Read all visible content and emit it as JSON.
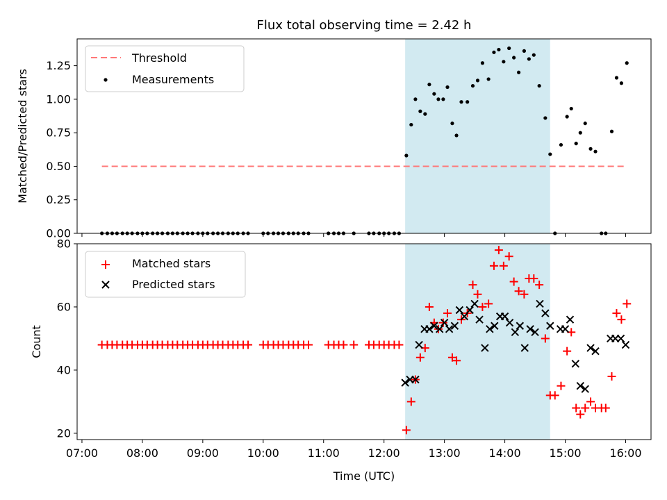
{
  "title": "Flux total observing time = 2.42 h",
  "colors": {
    "threshold": "#ff7777",
    "measurement": "#000000",
    "matched": "#ff0000",
    "predicted": "#000000",
    "window": "#add8e6"
  },
  "chart_data": [
    {
      "type": "scatter",
      "panel": "top",
      "title": "Flux total observing time = 2.42 h",
      "xlabel": "",
      "ylabel": "Matched/Predicted stars",
      "xlim": [
        6.92,
        16.42
      ],
      "ylim": [
        0,
        1.45
      ],
      "y_ticks": [
        0.0,
        0.25,
        0.5,
        0.75,
        1.0,
        1.25
      ],
      "y_tick_labels": [
        "0.00",
        "0.25",
        "0.50",
        "0.75",
        "1.00",
        "1.25"
      ],
      "grid": false,
      "legend_position": "top-left",
      "observing_window": [
        12.35,
        14.75
      ],
      "threshold": {
        "name": "Threshold",
        "value": 0.5,
        "x_range": [
          7.33,
          16.0
        ]
      },
      "measurements": {
        "name": "Measurements",
        "points": [
          [
            7.33,
            0
          ],
          [
            7.42,
            0
          ],
          [
            7.5,
            0
          ],
          [
            7.58,
            0
          ],
          [
            7.67,
            0
          ],
          [
            7.75,
            0
          ],
          [
            7.83,
            0
          ],
          [
            7.92,
            0
          ],
          [
            8.0,
            0
          ],
          [
            8.08,
            0
          ],
          [
            8.17,
            0
          ],
          [
            8.25,
            0
          ],
          [
            8.33,
            0
          ],
          [
            8.42,
            0
          ],
          [
            8.5,
            0
          ],
          [
            8.58,
            0
          ],
          [
            8.67,
            0
          ],
          [
            8.75,
            0
          ],
          [
            8.83,
            0
          ],
          [
            8.92,
            0
          ],
          [
            9.0,
            0
          ],
          [
            9.08,
            0
          ],
          [
            9.17,
            0
          ],
          [
            9.25,
            0
          ],
          [
            9.33,
            0
          ],
          [
            9.42,
            0
          ],
          [
            9.5,
            0
          ],
          [
            9.58,
            0
          ],
          [
            9.67,
            0
          ],
          [
            9.75,
            0
          ],
          [
            10.0,
            0
          ],
          [
            10.08,
            0
          ],
          [
            10.17,
            0
          ],
          [
            10.25,
            0
          ],
          [
            10.33,
            0
          ],
          [
            10.42,
            0
          ],
          [
            10.5,
            0
          ],
          [
            10.58,
            0
          ],
          [
            10.67,
            0
          ],
          [
            10.75,
            0
          ],
          [
            11.08,
            0
          ],
          [
            11.17,
            0
          ],
          [
            11.25,
            0
          ],
          [
            11.33,
            0
          ],
          [
            11.5,
            0
          ],
          [
            11.75,
            0
          ],
          [
            11.83,
            0
          ],
          [
            11.92,
            0
          ],
          [
            12.0,
            0
          ],
          [
            12.08,
            0
          ],
          [
            12.17,
            0
          ],
          [
            12.25,
            0
          ],
          [
            12.37,
            0.58
          ],
          [
            12.45,
            0.81
          ],
          [
            12.52,
            1.0
          ],
          [
            12.6,
            0.91
          ],
          [
            12.68,
            0.89
          ],
          [
            12.75,
            1.11
          ],
          [
            12.83,
            1.04
          ],
          [
            12.9,
            1.0
          ],
          [
            12.98,
            1.0
          ],
          [
            13.05,
            1.09
          ],
          [
            13.13,
            0.82
          ],
          [
            13.2,
            0.73
          ],
          [
            13.28,
            0.98
          ],
          [
            13.38,
            0.98
          ],
          [
            13.47,
            1.1
          ],
          [
            13.55,
            1.14
          ],
          [
            13.63,
            1.27
          ],
          [
            13.73,
            1.15
          ],
          [
            13.82,
            1.35
          ],
          [
            13.9,
            1.37
          ],
          [
            13.98,
            1.28
          ],
          [
            14.07,
            1.38
          ],
          [
            14.15,
            1.31
          ],
          [
            14.23,
            1.2
          ],
          [
            14.32,
            1.36
          ],
          [
            14.4,
            1.3
          ],
          [
            14.48,
            1.33
          ],
          [
            14.57,
            1.1
          ],
          [
            14.67,
            0.86
          ],
          [
            14.75,
            0.59
          ],
          [
            14.83,
            0
          ],
          [
            14.93,
            0.66
          ],
          [
            15.03,
            0.87
          ],
          [
            15.1,
            0.93
          ],
          [
            15.18,
            0.67
          ],
          [
            15.25,
            0.75
          ],
          [
            15.33,
            0.82
          ],
          [
            15.42,
            0.63
          ],
          [
            15.5,
            0.61
          ],
          [
            15.6,
            0
          ],
          [
            15.67,
            0
          ],
          [
            15.77,
            0.76
          ],
          [
            15.85,
            1.16
          ],
          [
            15.93,
            1.12
          ],
          [
            16.02,
            1.27
          ]
        ]
      }
    },
    {
      "type": "scatter",
      "panel": "bottom",
      "xlabel": "Time (UTC)",
      "ylabel": "Count",
      "xlim": [
        6.92,
        16.42
      ],
      "ylim": [
        18,
        80
      ],
      "x_ticks": [
        7,
        8,
        9,
        10,
        11,
        12,
        13,
        14,
        15,
        16
      ],
      "x_tick_labels": [
        "07:00",
        "08:00",
        "09:00",
        "10:00",
        "11:00",
        "12:00",
        "13:00",
        "14:00",
        "15:00",
        "16:00"
      ],
      "y_ticks": [
        20,
        40,
        60,
        80
      ],
      "y_tick_labels": [
        "20",
        "40",
        "60",
        "80"
      ],
      "grid": false,
      "legend_position": "top-left",
      "observing_window": [
        12.35,
        14.75
      ],
      "series": [
        {
          "name": "Matched stars",
          "marker": "+",
          "points": [
            [
              7.33,
              48
            ],
            [
              7.42,
              48
            ],
            [
              7.5,
              48
            ],
            [
              7.58,
              48
            ],
            [
              7.67,
              48
            ],
            [
              7.75,
              48
            ],
            [
              7.83,
              48
            ],
            [
              7.92,
              48
            ],
            [
              8.0,
              48
            ],
            [
              8.08,
              48
            ],
            [
              8.17,
              48
            ],
            [
              8.25,
              48
            ],
            [
              8.33,
              48
            ],
            [
              8.42,
              48
            ],
            [
              8.5,
              48
            ],
            [
              8.58,
              48
            ],
            [
              8.67,
              48
            ],
            [
              8.75,
              48
            ],
            [
              8.83,
              48
            ],
            [
              8.92,
              48
            ],
            [
              9.0,
              48
            ],
            [
              9.08,
              48
            ],
            [
              9.17,
              48
            ],
            [
              9.25,
              48
            ],
            [
              9.33,
              48
            ],
            [
              9.42,
              48
            ],
            [
              9.5,
              48
            ],
            [
              9.58,
              48
            ],
            [
              9.67,
              48
            ],
            [
              9.75,
              48
            ],
            [
              10.0,
              48
            ],
            [
              10.08,
              48
            ],
            [
              10.17,
              48
            ],
            [
              10.25,
              48
            ],
            [
              10.33,
              48
            ],
            [
              10.42,
              48
            ],
            [
              10.5,
              48
            ],
            [
              10.58,
              48
            ],
            [
              10.67,
              48
            ],
            [
              10.75,
              48
            ],
            [
              11.08,
              48
            ],
            [
              11.17,
              48
            ],
            [
              11.25,
              48
            ],
            [
              11.33,
              48
            ],
            [
              11.5,
              48
            ],
            [
              11.75,
              48
            ],
            [
              11.83,
              48
            ],
            [
              11.92,
              48
            ],
            [
              12.0,
              48
            ],
            [
              12.08,
              48
            ],
            [
              12.17,
              48
            ],
            [
              12.25,
              48
            ],
            [
              12.37,
              21
            ],
            [
              12.45,
              30
            ],
            [
              12.52,
              37
            ],
            [
              12.6,
              44
            ],
            [
              12.68,
              47
            ],
            [
              12.75,
              60
            ],
            [
              12.83,
              55
            ],
            [
              12.9,
              53
            ],
            [
              12.98,
              55
            ],
            [
              13.05,
              58
            ],
            [
              13.13,
              44
            ],
            [
              13.2,
              43
            ],
            [
              13.28,
              56
            ],
            [
              13.38,
              58
            ],
            [
              13.47,
              67
            ],
            [
              13.55,
              64
            ],
            [
              13.63,
              60
            ],
            [
              13.73,
              61
            ],
            [
              13.82,
              73
            ],
            [
              13.9,
              78
            ],
            [
              13.98,
              73
            ],
            [
              14.07,
              76
            ],
            [
              14.15,
              68
            ],
            [
              14.23,
              65
            ],
            [
              14.32,
              64
            ],
            [
              14.4,
              69
            ],
            [
              14.48,
              69
            ],
            [
              14.57,
              67
            ],
            [
              14.67,
              50
            ],
            [
              14.75,
              32
            ],
            [
              14.83,
              32
            ],
            [
              14.93,
              35
            ],
            [
              15.03,
              46
            ],
            [
              15.1,
              52
            ],
            [
              15.18,
              28
            ],
            [
              15.25,
              26
            ],
            [
              15.33,
              28
            ],
            [
              15.42,
              30
            ],
            [
              15.5,
              28
            ],
            [
              15.6,
              28
            ],
            [
              15.67,
              28
            ],
            [
              15.77,
              38
            ],
            [
              15.85,
              58
            ],
            [
              15.93,
              56
            ],
            [
              16.02,
              61
            ]
          ]
        },
        {
          "name": "Predicted stars",
          "marker": "x",
          "points": [
            [
              12.35,
              36
            ],
            [
              12.43,
              37
            ],
            [
              12.52,
              37
            ],
            [
              12.58,
              48
            ],
            [
              12.67,
              53
            ],
            [
              12.75,
              53
            ],
            [
              12.83,
              54
            ],
            [
              12.92,
              53
            ],
            [
              13.0,
              55
            ],
            [
              13.08,
              53
            ],
            [
              13.17,
              54
            ],
            [
              13.25,
              59
            ],
            [
              13.33,
              57
            ],
            [
              13.42,
              59
            ],
            [
              13.5,
              61
            ],
            [
              13.58,
              56
            ],
            [
              13.67,
              47
            ],
            [
              13.75,
              53
            ],
            [
              13.83,
              54
            ],
            [
              13.92,
              57
            ],
            [
              14.0,
              57
            ],
            [
              14.08,
              55
            ],
            [
              14.17,
              52
            ],
            [
              14.25,
              54
            ],
            [
              14.33,
              47
            ],
            [
              14.42,
              53
            ],
            [
              14.5,
              52
            ],
            [
              14.58,
              61
            ],
            [
              14.67,
              58
            ],
            [
              14.75,
              54
            ],
            [
              14.92,
              53
            ],
            [
              15.0,
              53
            ],
            [
              15.08,
              56
            ],
            [
              15.17,
              42
            ],
            [
              15.25,
              35
            ],
            [
              15.33,
              34
            ],
            [
              15.42,
              47
            ],
            [
              15.5,
              46
            ],
            [
              15.75,
              50
            ],
            [
              15.83,
              50
            ],
            [
              15.92,
              50
            ],
            [
              16.0,
              48
            ]
          ]
        }
      ]
    }
  ]
}
